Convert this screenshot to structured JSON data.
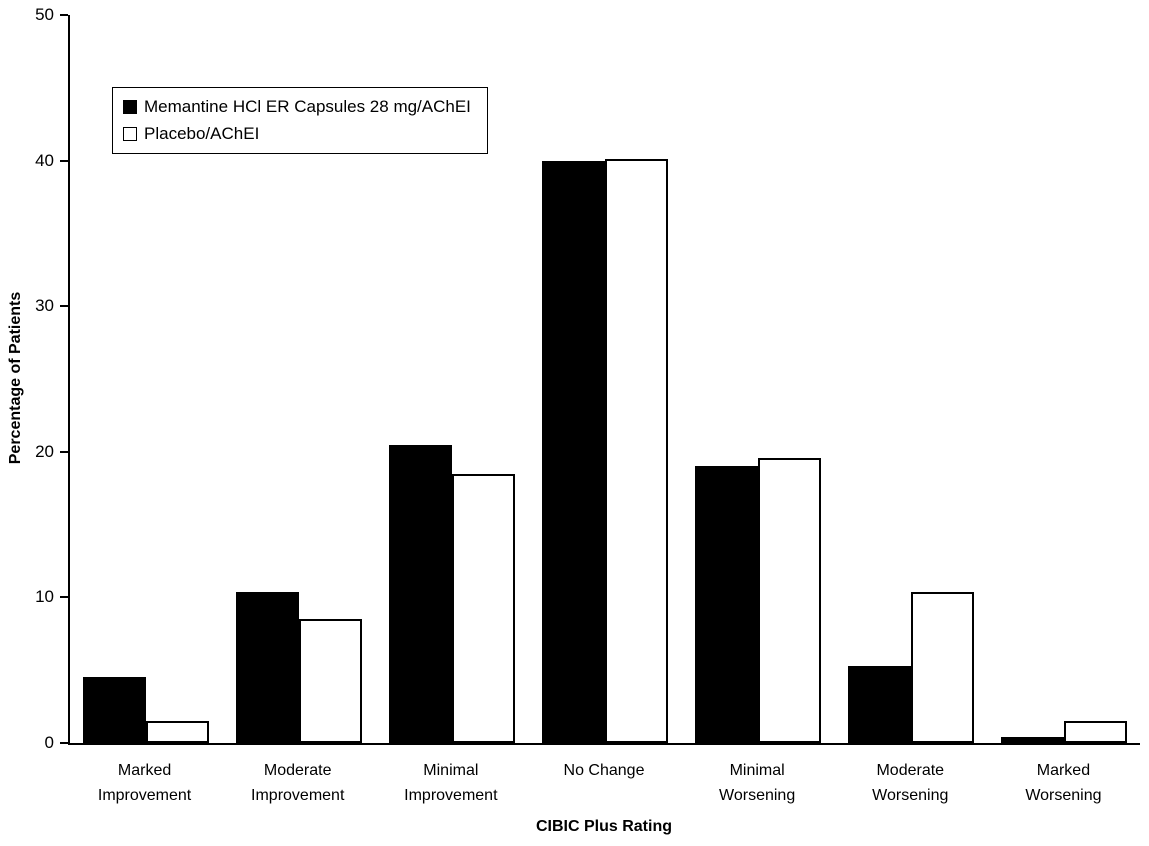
{
  "chart_data": {
    "type": "bar",
    "title": "",
    "xlabel": "CIBIC Plus Rating",
    "ylabel": "Percentage of Patients",
    "ylim": [
      0,
      50
    ],
    "yticks": [
      0,
      10,
      20,
      30,
      40,
      50
    ],
    "grid": false,
    "legend_position": "top-left-inside",
    "background_color": "#ffffff",
    "axis_color": "#000000",
    "categories": [
      "Marked\nImprovement",
      "Moderate\nImprovement",
      "Minimal\nImprovement",
      "No Change",
      "Minimal\nWorsening",
      "Moderate\nWorsening",
      "Marked\nWorsening"
    ],
    "series": [
      {
        "name": "Memantine HCl ER Capsules 28 mg/AChEI",
        "color": "#000000",
        "fill": "solid",
        "values": [
          4.5,
          10.4,
          20.5,
          40.0,
          19.0,
          5.3,
          0.4
        ]
      },
      {
        "name": "Placebo/AChEI",
        "color": "#ffffff",
        "fill": "outline",
        "values": [
          1.5,
          8.5,
          18.5,
          40.1,
          19.6,
          10.4,
          1.5
        ]
      }
    ]
  }
}
